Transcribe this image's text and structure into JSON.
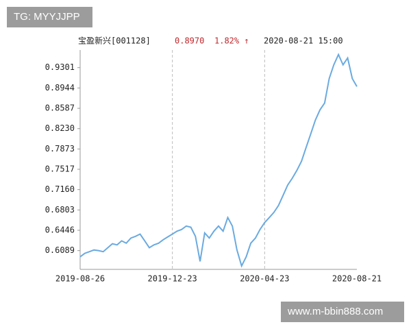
{
  "chart_data": {
    "type": "line",
    "title": "宝盈新兴[001128]",
    "annotations": [
      "0.8970",
      "1.82% ↑",
      "2020-08-21 15:00"
    ],
    "categories": [
      "2019-08-26",
      null,
      null,
      null,
      null,
      null,
      null,
      null,
      null,
      null,
      null,
      null,
      null,
      null,
      null,
      null,
      null,
      null,
      null,
      null,
      "2019-12-23",
      null,
      null,
      null,
      null,
      null,
      null,
      null,
      null,
      null,
      null,
      null,
      null,
      null,
      null,
      null,
      null,
      null,
      null,
      null,
      "2020-04-23",
      null,
      null,
      null,
      null,
      null,
      null,
      null,
      null,
      null,
      null,
      null,
      null,
      null,
      null,
      null,
      null,
      null,
      null,
      null,
      "2020-08-21"
    ],
    "series": [
      {
        "name": "宝盈新兴",
        "color": "#6aaae0",
        "values": [
          0.598,
          0.604,
          0.607,
          0.61,
          0.609,
          0.607,
          0.614,
          0.621,
          0.619,
          0.626,
          0.622,
          0.631,
          0.634,
          0.638,
          0.626,
          0.614,
          0.619,
          0.622,
          0.628,
          0.633,
          0.638,
          0.643,
          0.646,
          0.652,
          0.65,
          0.634,
          0.59,
          0.64,
          0.631,
          0.643,
          0.652,
          0.643,
          0.667,
          0.652,
          0.61,
          0.582,
          0.598,
          0.622,
          0.631,
          0.646,
          0.658,
          0.667,
          0.676,
          0.688,
          0.706,
          0.724,
          0.736,
          0.75,
          0.766,
          0.79,
          0.814,
          0.838,
          0.856,
          0.868,
          0.911,
          0.935,
          0.953,
          0.935,
          0.947,
          0.911,
          0.897
        ]
      }
    ],
    "ylim": [
      0.576,
      0.961
    ],
    "yticks": [
      0.6089,
      0.6446,
      0.6803,
      {
        "value": 0.716,
        "label": "0.7160"
      },
      0.7517,
      0.7873,
      {
        "value": 0.823,
        "label": "0.8230"
      },
      0.8587,
      0.8944,
      0.9301
    ],
    "grid": true
  },
  "watermarks": {
    "top": "TG: MYYJJPP",
    "bottom": "www.m-bbin888.com"
  }
}
